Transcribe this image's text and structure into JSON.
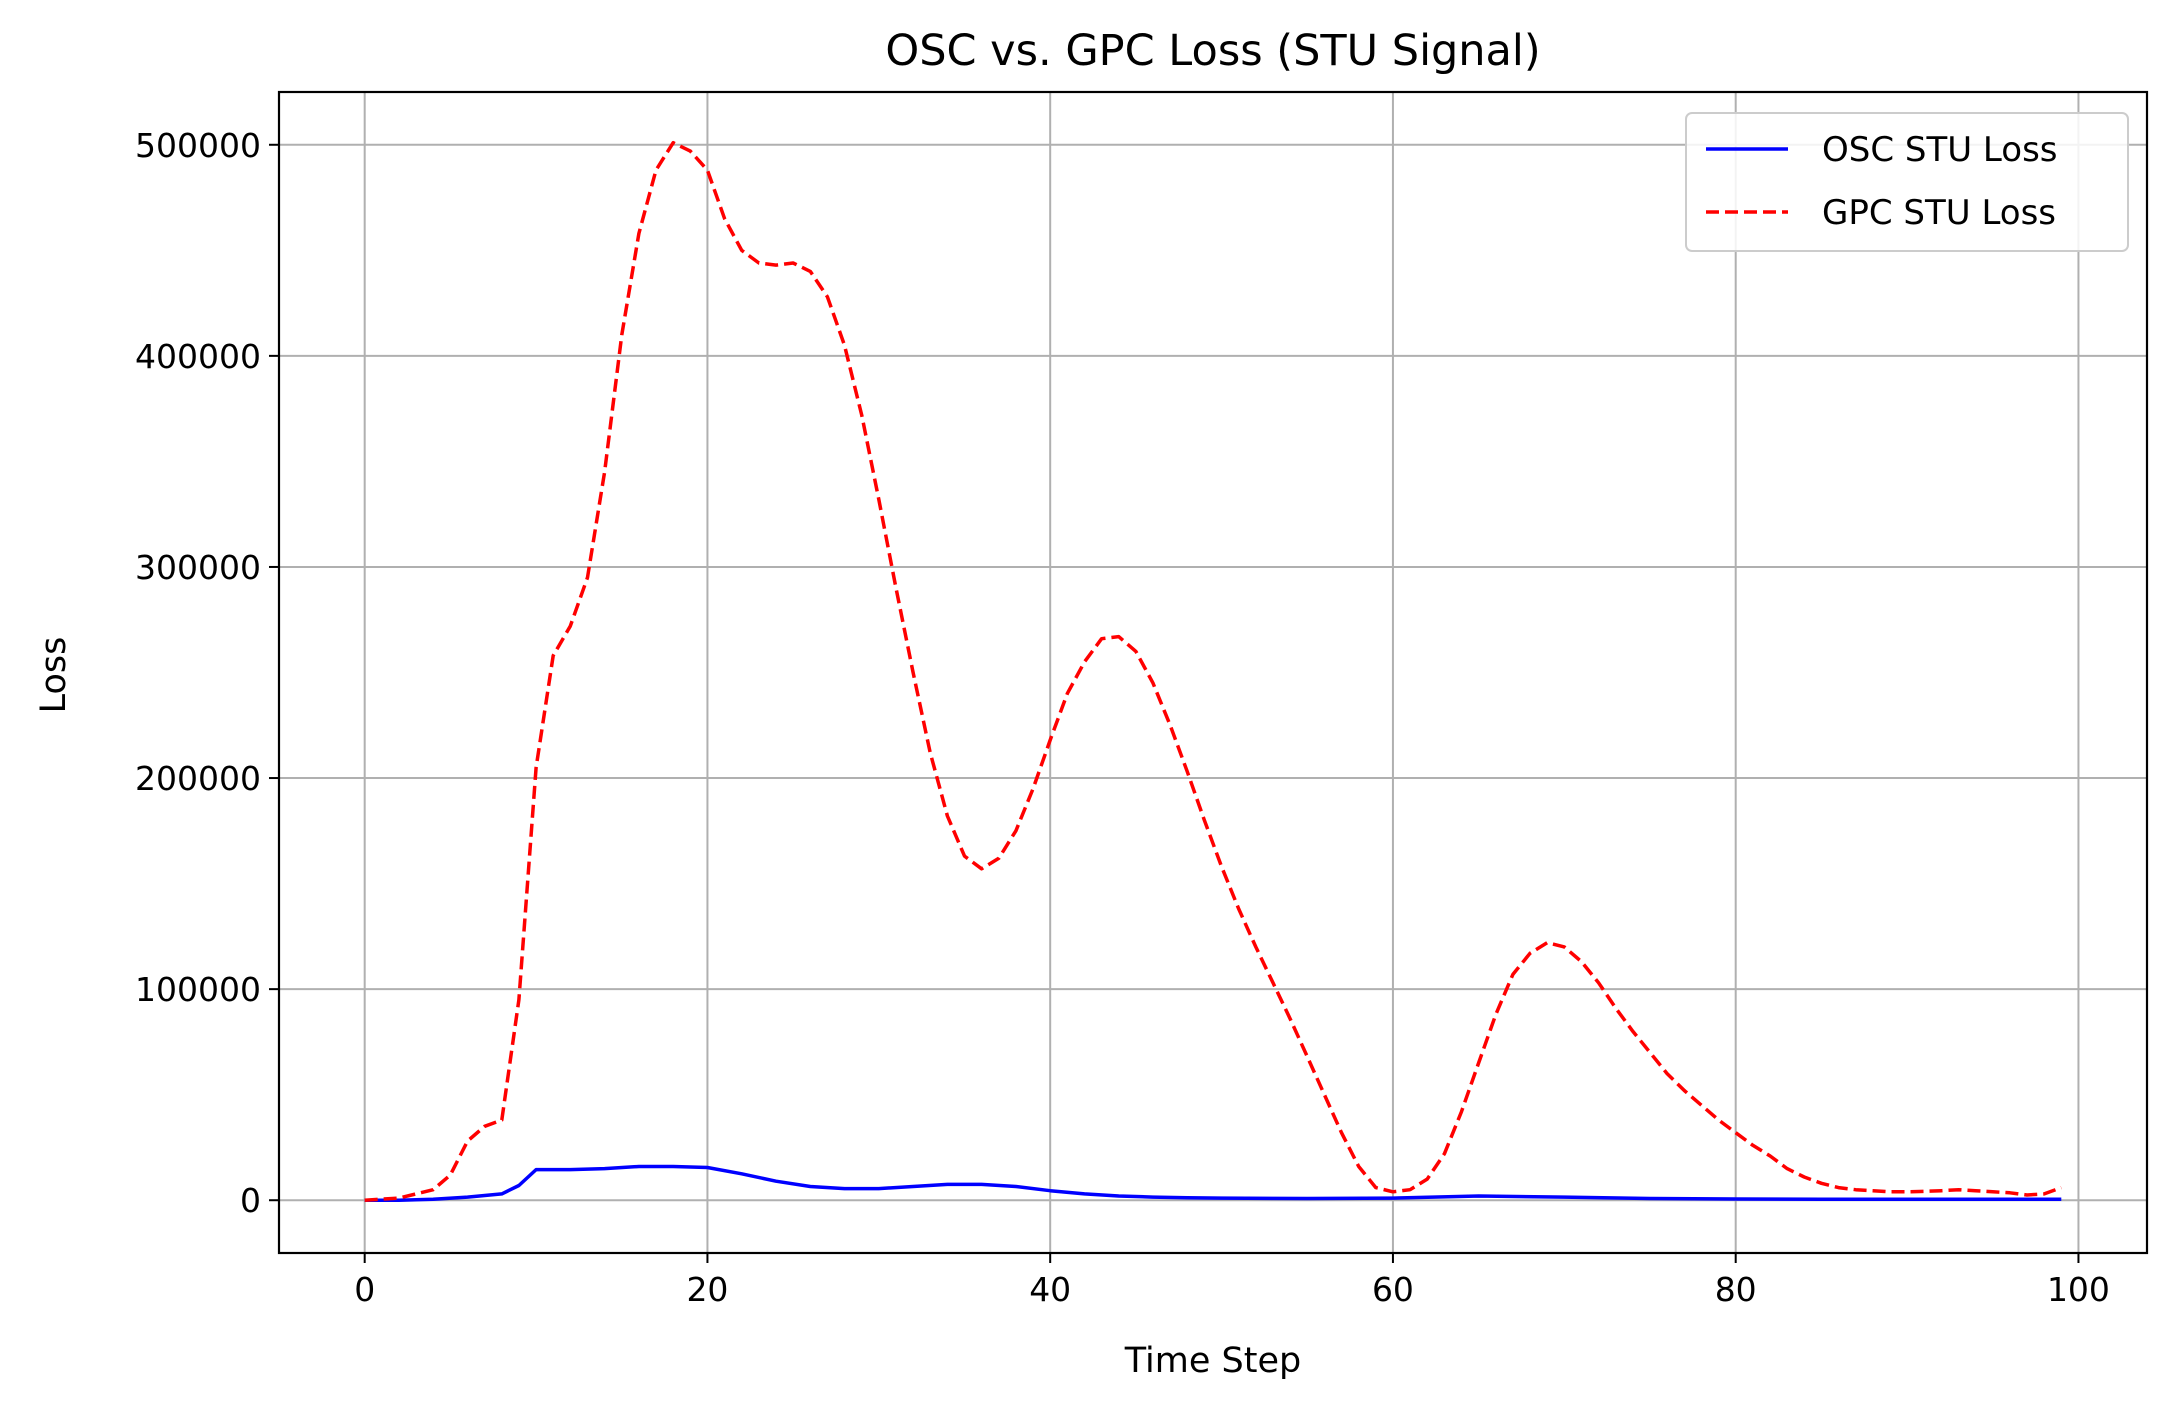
{
  "chart_data": {
    "type": "line",
    "title": "OSC vs. GPC Loss (STU Signal)",
    "xlabel": "Time Step",
    "ylabel": "Loss",
    "xlim": [
      -5,
      104
    ],
    "ylim": [
      -25000,
      525000
    ],
    "xticks": [
      0,
      20,
      40,
      60,
      80,
      100
    ],
    "yticks": [
      0,
      100000,
      200000,
      300000,
      400000,
      500000
    ],
    "grid": true,
    "legend_position": "top-right",
    "series": [
      {
        "name": "OSC STU Loss",
        "color": "#0000ff",
        "style": "solid",
        "x": [
          0,
          2,
          4,
          6,
          8,
          9,
          10,
          12,
          14,
          16,
          18,
          20,
          22,
          24,
          26,
          28,
          30,
          32,
          34,
          36,
          38,
          40,
          42,
          44,
          46,
          48,
          50,
          55,
          60,
          65,
          70,
          75,
          80,
          85,
          90,
          95,
          99
        ],
        "y": [
          0,
          0,
          500,
          1500,
          3000,
          7000,
          14500,
          14500,
          15000,
          16000,
          16000,
          15500,
          12500,
          9000,
          6500,
          5500,
          5500,
          6500,
          7500,
          7500,
          6500,
          4500,
          3000,
          2000,
          1500,
          1200,
          1000,
          800,
          1000,
          2000,
          1500,
          800,
          600,
          500,
          500,
          500,
          500
        ]
      },
      {
        "name": "GPC STU Loss",
        "color": "#ff0000",
        "style": "dashed",
        "x": [
          0,
          2,
          4,
          5,
          6,
          7,
          8,
          9,
          10,
          11,
          12,
          13,
          14,
          15,
          16,
          17,
          18,
          19,
          20,
          21,
          22,
          23,
          24,
          25,
          26,
          27,
          28,
          29,
          30,
          31,
          32,
          33,
          34,
          35,
          36,
          37,
          38,
          39,
          40,
          41,
          42,
          43,
          44,
          45,
          46,
          47,
          48,
          49,
          50,
          51,
          52,
          53,
          54,
          55,
          56,
          57,
          58,
          59,
          60,
          61,
          62,
          63,
          64,
          65,
          66,
          67,
          68,
          69,
          70,
          71,
          72,
          73,
          74,
          75,
          76,
          77,
          78,
          79,
          80,
          81,
          82,
          83,
          84,
          85,
          86,
          87,
          88,
          89,
          90,
          91,
          92,
          93,
          94,
          95,
          96,
          97,
          98,
          99
        ],
        "y": [
          0,
          1000,
          5000,
          12000,
          28000,
          35000,
          38000,
          95000,
          205000,
          258000,
          272000,
          295000,
          345000,
          410000,
          458000,
          488000,
          501000,
          497000,
          488000,
          465000,
          450000,
          444000,
          443000,
          444000,
          440000,
          428000,
          405000,
          372000,
          332000,
          290000,
          250000,
          212000,
          182000,
          163000,
          157000,
          162000,
          175000,
          195000,
          218000,
          240000,
          255000,
          266000,
          267000,
          260000,
          245000,
          225000,
          203000,
          180000,
          158000,
          138000,
          120000,
          103000,
          86000,
          68000,
          50000,
          32000,
          16000,
          6000,
          4000,
          5000,
          10000,
          22000,
          42000,
          65000,
          88000,
          107000,
          117000,
          122000,
          120000,
          113000,
          103000,
          91000,
          80000,
          70000,
          60000,
          52000,
          45000,
          38000,
          32000,
          26000,
          21000,
          15000,
          11000,
          8000,
          6000,
          5000,
          4500,
          4000,
          4000,
          4200,
          4500,
          5000,
          4500,
          4000,
          3500,
          2500,
          3000,
          6000
        ]
      }
    ]
  }
}
